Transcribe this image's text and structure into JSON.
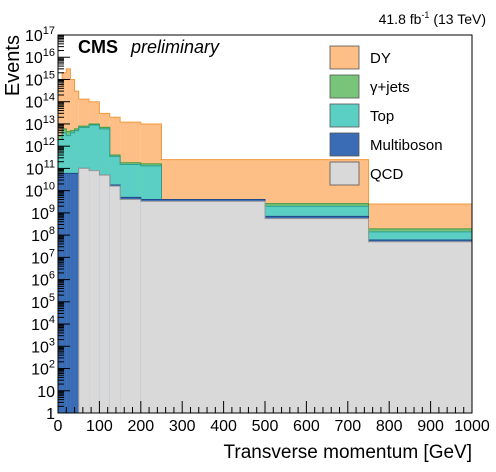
{
  "lumi_label": "41.8 fb",
  "lumi_sup": "-1",
  "lumi_energy": " (13 TeV)",
  "cms_label": "CMS",
  "cms_sub": "preliminary",
  "chart_data": {
    "type": "area",
    "stacked": true,
    "xlabel": "Transverse momentum [GeV]",
    "ylabel": "Events",
    "xlim": [
      0,
      1000
    ],
    "ylim": [
      1,
      1e+17
    ],
    "ylog": true,
    "grid": false,
    "legend_position": "top-right",
    "bin_edges": [
      0,
      10,
      20,
      30,
      40,
      50,
      75,
      100,
      125,
      150,
      200,
      250,
      500,
      750,
      1000
    ],
    "x_ticks": [
      "0",
      "100",
      "200",
      "300",
      "400",
      "500",
      "600",
      "700",
      "800",
      "900",
      "1000"
    ],
    "y_tick_exponents": [
      0,
      1,
      2,
      3,
      4,
      5,
      6,
      7,
      8,
      9,
      10,
      11,
      12,
      13,
      14,
      15,
      16,
      17
    ],
    "series": [
      {
        "name": "Multiboson",
        "color": "#3a6bb5",
        "cumulative": [
          60000000000.0,
          60000000000.0,
          60000000000.0,
          60000000000.0,
          60000000000.0,
          100000000000.0,
          70000000000.0,
          50000000000.0,
          18000000000.0,
          5000000000.0,
          4000000000.0,
          4000000000.0,
          700000000.0,
          60000000.0
        ]
      },
      {
        "name": "QCD",
        "color": "#d9d9d9",
        "cumulative": [
          1,
          1,
          1,
          1,
          1,
          100000000000.0,
          80000000000.0,
          50000000000.0,
          16000000000.0,
          4000000000.0,
          3300000000.0,
          3300000000.0,
          550000000.0,
          50000000.0
        ]
      },
      {
        "name": "Top",
        "color": "#5ccfc4",
        "cumulative": [
          2000000000000.0,
          4000000000000.0,
          3000000000000.0,
          4000000000000.0,
          5000000000000.0,
          7000000000000.0,
          9000000000000.0,
          6000000000000.0,
          350000000000.0,
          150000000000.0,
          130000000000.0,
          2300000000.0,
          2000000000.0,
          140000000.0
        ]
      },
      {
        "name": "γ+jets",
        "color": "#78c478",
        "cumulative": [
          3000000000000.0,
          6000000000000.0,
          4500000000000.0,
          5000000000000.0,
          6000000000000.0,
          8000000000000.0,
          10000000000000.0,
          7000000000000.0,
          400000000000.0,
          180000000000.0,
          160000000000.0,
          3000000000.0,
          2600000000.0,
          190000000.0
        ]
      },
      {
        "name": "DY",
        "color": "#fdbf86",
        "cumulative": [
          500000000000000.0,
          2000000000000000.0,
          3000000000000000.0,
          1000000000000000.0,
          300000000000000.0,
          130000000000000.0,
          100000000000000.0,
          30000000000000.0,
          20000000000000.0,
          12000000000000.0,
          10000000000000.0,
          250000000000.0,
          250000000000.0,
          2500000000.0
        ]
      }
    ],
    "legend_order": [
      "DY",
      "γ+jets",
      "Top",
      "Multiboson",
      "QCD"
    ]
  }
}
